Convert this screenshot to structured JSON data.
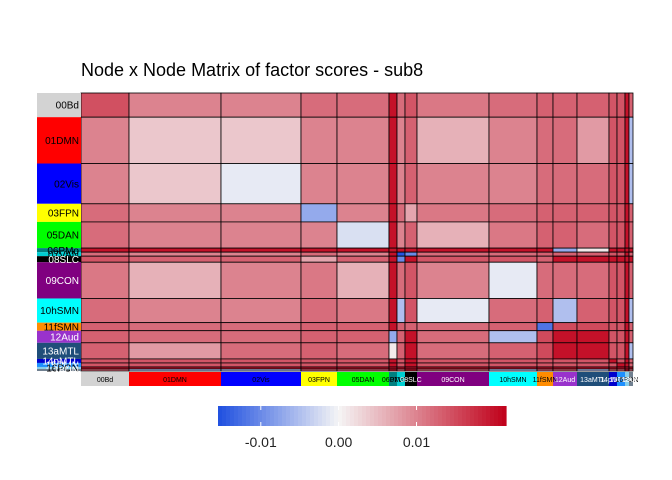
{
  "chart_data": {
    "type": "heatmap",
    "title": "Node x Node Matrix of factor scores - sub8",
    "networks": [
      {
        "name": "00Bd",
        "color": "#d3d3d3",
        "text_color": "#000000",
        "nodes": 12
      },
      {
        "name": "01DMN",
        "color": "#ff0000",
        "text_color": "#000000",
        "nodes": 23
      },
      {
        "name": "02Vis",
        "color": "#0000ff",
        "text_color": "#000000",
        "nodes": 20
      },
      {
        "name": "03FPN",
        "color": "#ffff00",
        "text_color": "#000000",
        "nodes": 9
      },
      {
        "name": "05DAN",
        "color": "#00ff00",
        "text_color": "#000000",
        "nodes": 13
      },
      {
        "name": "06PMo",
        "color": "#008080",
        "text_color": "#000000",
        "nodes": 2
      },
      {
        "name": "07VAN",
        "color": "#00ced1",
        "text_color": "#000000",
        "nodes": 2
      },
      {
        "name": "08SLC",
        "color": "#000000",
        "text_color": "#ffffff",
        "nodes": 3
      },
      {
        "name": "09CON",
        "color": "#800080",
        "text_color": "#ffffff",
        "nodes": 18
      },
      {
        "name": "10hSMN",
        "color": "#00ffff",
        "text_color": "#000000",
        "nodes": 12
      },
      {
        "name": "11fSMN",
        "color": "#ff8c00",
        "text_color": "#000000",
        "nodes": 4
      },
      {
        "name": "12Aud",
        "color": "#9932cc",
        "text_color": "#ffffff",
        "nodes": 6
      },
      {
        "name": "13aMTL",
        "color": "#1f4e79",
        "text_color": "#ffffff",
        "nodes": 8
      },
      {
        "name": "14pMTL",
        "color": "#0000cd",
        "text_color": "#ffffff",
        "nodes": 2
      },
      {
        "name": "15PMN",
        "color": "#1e90ff",
        "text_color": "#ffffff",
        "nodes": 2
      },
      {
        "name": "16PON",
        "color": "#87ceeb",
        "text_color": "#000000",
        "nodes": 1
      },
      {
        "name": "18UN",
        "color": "#708090",
        "text_color": "#ffffff",
        "nodes": 1
      }
    ],
    "column_labels": [
      "00Bd",
      "01DMN",
      "02Vis",
      "03FPN",
      "05DAN",
      "06PMo",
      "07VAN",
      "08SLC",
      "09CON",
      "10hSMN",
      "11fSMN",
      "12Aud",
      "13aMTL",
      "14pMTL",
      "15PMN",
      "16PON",
      "18UN"
    ],
    "values": [
      [
        0.0145,
        0.01,
        0.01,
        0.012,
        0.012,
        0.02,
        0.012,
        0.014,
        0.011,
        0.012,
        0.013,
        0.013,
        0.013,
        0.014,
        0.014,
        0.02,
        0.013
      ],
      [
        0.01,
        0.004,
        0.004,
        0.01,
        0.01,
        0.02,
        0.01,
        0.013,
        0.006,
        0.01,
        0.012,
        0.012,
        0.008,
        0.014,
        0.014,
        0.02,
        -0.005
      ],
      [
        0.01,
        0.004,
        -0.001,
        0.01,
        0.01,
        0.02,
        0.01,
        0.013,
        0.01,
        0.01,
        0.012,
        0.012,
        0.012,
        0.014,
        0.014,
        0.02,
        -0.005
      ],
      [
        0.012,
        0.01,
        0.01,
        -0.007,
        0.01,
        0.02,
        0.012,
        0.007,
        0.011,
        0.012,
        0.013,
        0.013,
        0.013,
        0.014,
        0.014,
        0.02,
        0.013
      ],
      [
        0.012,
        0.01,
        0.01,
        0.01,
        -0.002,
        0.02,
        0.01,
        0.013,
        0.006,
        0.011,
        0.013,
        0.013,
        0.012,
        0.014,
        0.014,
        0.02,
        0.013
      ],
      [
        0.02,
        0.02,
        0.02,
        0.02,
        0.02,
        0.02,
        0.02,
        0.02,
        0.02,
        0.02,
        0.02,
        -0.007,
        0.001,
        0.02,
        0.02,
        0.02,
        0.02
      ],
      [
        0.012,
        0.01,
        0.01,
        0.012,
        0.01,
        0.02,
        -0.015,
        -0.01,
        0.012,
        0.012,
        0.013,
        0.013,
        0.013,
        0.014,
        0.014,
        0.02,
        0.013
      ],
      [
        0.014,
        0.013,
        0.013,
        0.007,
        0.013,
        0.02,
        -0.01,
        0.02,
        0.014,
        0.014,
        0.013,
        0.02,
        0.02,
        0.02,
        0.02,
        0.02,
        0.02
      ],
      [
        0.011,
        0.006,
        0.01,
        0.011,
        0.006,
        0.02,
        0.012,
        0.014,
        0.01,
        -0.001,
        0.012,
        0.012,
        0.012,
        0.014,
        0.014,
        0.02,
        0.013
      ],
      [
        0.012,
        0.01,
        0.01,
        0.012,
        0.011,
        0.02,
        -0.005,
        0.014,
        -0.001,
        0.012,
        0.013,
        -0.005,
        0.013,
        0.014,
        0.014,
        0.02,
        -0.005
      ],
      [
        0.013,
        0.012,
        0.012,
        0.013,
        0.013,
        0.02,
        0.013,
        0.013,
        0.012,
        0.013,
        -0.012,
        0.015,
        0.015,
        0.014,
        0.014,
        0.02,
        0.013
      ],
      [
        0.013,
        0.012,
        0.012,
        0.013,
        0.013,
        -0.007,
        0.013,
        0.02,
        0.012,
        -0.005,
        0.015,
        0.02,
        0.02,
        0.014,
        0.014,
        0.02,
        0.013
      ],
      [
        0.013,
        0.008,
        0.012,
        0.013,
        0.012,
        0.001,
        0.013,
        0.02,
        0.012,
        0.013,
        0.015,
        0.02,
        0.02,
        0.014,
        0.014,
        0.02,
        -0.005
      ],
      [
        0.014,
        0.014,
        0.014,
        0.014,
        0.014,
        0.02,
        0.014,
        0.02,
        0.014,
        0.014,
        0.014,
        0.014,
        0.014,
        0.02,
        0.014,
        0.02,
        0.013
      ],
      [
        0.014,
        0.014,
        0.014,
        0.014,
        0.014,
        0.02,
        0.014,
        0.02,
        0.014,
        0.014,
        0.014,
        0.014,
        0.014,
        0.014,
        0.02,
        0.02,
        0.013
      ],
      [
        0.02,
        0.02,
        0.02,
        0.02,
        0.02,
        0.02,
        0.02,
        0.02,
        0.02,
        0.02,
        0.02,
        0.02,
        0.02,
        0.02,
        0.02,
        0.02,
        0.02
      ],
      [
        0.013,
        -0.005,
        -0.005,
        0.013,
        0.013,
        0.02,
        0.013,
        0.02,
        0.013,
        -0.005,
        0.013,
        0.013,
        -0.005,
        0.013,
        0.013,
        0.02,
        0.013
      ]
    ],
    "colorbar": {
      "min": -0.0155,
      "mid": 0.0,
      "max": 0.0215,
      "low_color": "#1e4fe0",
      "mid_color": "#f5f5f5",
      "high_color": "#c0001a",
      "ticks": [
        -0.01,
        0.0,
        0.01
      ],
      "tick_labels": [
        "-0.01",
        "0.00",
        "0.01"
      ]
    }
  }
}
